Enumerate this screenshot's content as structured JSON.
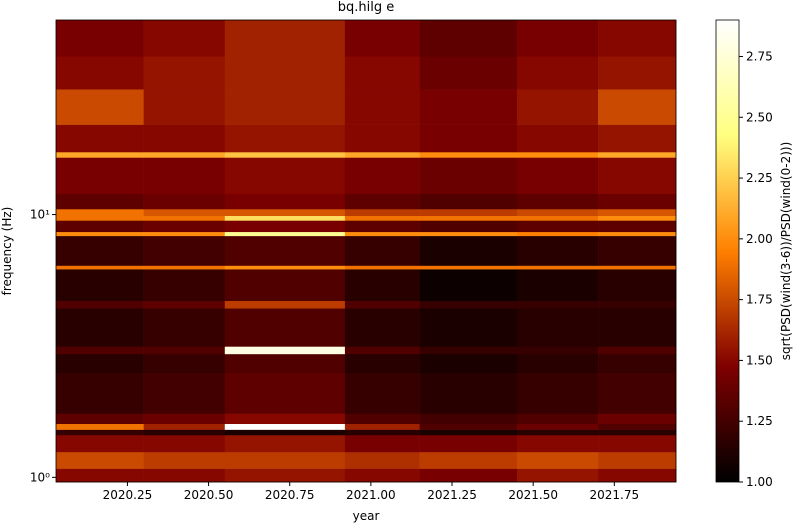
{
  "chart_data": {
    "type": "heatmap",
    "title": "bq.hilg e",
    "x_label": "year",
    "y_label": "frequency (Hz)",
    "colorbar_label": "sqrt(PSD(wind(3-6))/PSD(wind(0-2)))",
    "colormap": "afmhot",
    "y_log": true,
    "xlim": [
      2020.03,
      2021.94
    ],
    "ylim": [
      0.96,
      55
    ],
    "clim": [
      1.0,
      2.9
    ],
    "xticks": [
      {
        "value": 2020.25,
        "label": "2020.25"
      },
      {
        "value": 2020.5,
        "label": "2020.50"
      },
      {
        "value": 2020.75,
        "label": "2020.75"
      },
      {
        "value": 2021,
        "label": "2021.00"
      },
      {
        "value": 2021.25,
        "label": "2021.25"
      },
      {
        "value": 2021.5,
        "label": "2021.50"
      },
      {
        "value": 2021.75,
        "label": "2021.75"
      }
    ],
    "yticks": [
      {
        "value": 1,
        "label": "10⁰"
      },
      {
        "value": 10,
        "label": "10¹"
      }
    ],
    "cticks": [
      {
        "value": 1,
        "label": "1.00"
      },
      {
        "value": 1.25,
        "label": "1.25"
      },
      {
        "value": 1.5,
        "label": "1.50"
      },
      {
        "value": 1.75,
        "label": "1.75"
      },
      {
        "value": 2,
        "label": "2.00"
      },
      {
        "value": 2.25,
        "label": "2.25"
      },
      {
        "value": 2.5,
        "label": "2.50"
      },
      {
        "value": 2.75,
        "label": "2.75"
      }
    ],
    "x_edges": [
      2020.03,
      2020.3,
      2020.55,
      2020.92,
      2021.15,
      2021.45,
      2021.7,
      2021.94
    ],
    "y_edges": [
      0.96,
      1.08,
      1.25,
      1.45,
      1.52,
      1.6,
      1.75,
      2.5,
      2.95,
      3.15,
      4.4,
      4.7,
      6.2,
      6.4,
      8.3,
      8.6,
      9.5,
      9.9,
      10.5,
      12,
      16.5,
      17.3,
      22,
      30,
      40,
      55
    ],
    "z": [
      [
        1.5,
        1.5,
        1.55,
        1.5,
        1.45,
        1.55,
        1.5
      ],
      [
        1.75,
        1.7,
        1.7,
        1.65,
        1.7,
        1.75,
        1.7
      ],
      [
        1.5,
        1.5,
        1.55,
        1.45,
        1.45,
        1.5,
        1.5
      ],
      [
        1.2,
        1.15,
        1.1,
        1.15,
        1.1,
        1.15,
        1.15
      ],
      [
        1.9,
        1.6,
        2.9,
        1.6,
        1.3,
        1.4,
        1.3
      ],
      [
        1.35,
        1.4,
        1.5,
        1.3,
        1.25,
        1.3,
        1.4
      ],
      [
        1.2,
        1.25,
        1.35,
        1.2,
        1.15,
        1.2,
        1.25
      ],
      [
        1.15,
        1.2,
        1.3,
        1.15,
        1.1,
        1.15,
        1.2
      ],
      [
        1.3,
        1.3,
        2.8,
        1.3,
        1.2,
        1.2,
        1.3
      ],
      [
        1.15,
        1.2,
        1.3,
        1.15,
        1.1,
        1.15,
        1.15
      ],
      [
        1.3,
        1.35,
        1.7,
        1.3,
        1.2,
        1.2,
        1.2
      ],
      [
        1.15,
        1.2,
        1.3,
        1.15,
        1.05,
        1.1,
        1.15
      ],
      [
        1.9,
        1.9,
        2.0,
        1.9,
        1.9,
        1.9,
        1.9
      ],
      [
        1.2,
        1.25,
        1.3,
        1.2,
        1.1,
        1.15,
        1.2
      ],
      [
        2.0,
        2.0,
        2.5,
        2.0,
        2.0,
        1.95,
        2.0
      ],
      [
        1.35,
        1.4,
        1.45,
        1.35,
        1.3,
        1.35,
        1.35
      ],
      [
        1.9,
        1.9,
        2.3,
        1.9,
        1.9,
        1.9,
        2.0
      ],
      [
        1.9,
        1.8,
        1.8,
        1.7,
        1.7,
        1.75,
        1.8
      ],
      [
        1.35,
        1.4,
        1.45,
        1.35,
        1.3,
        1.35,
        1.4
      ],
      [
        1.45,
        1.45,
        1.5,
        1.45,
        1.4,
        1.45,
        1.5
      ],
      [
        2.1,
        2.1,
        2.2,
        2.1,
        2.0,
        2.0,
        2.1
      ],
      [
        1.5,
        1.5,
        1.55,
        1.5,
        1.45,
        1.5,
        1.55
      ],
      [
        1.75,
        1.55,
        1.6,
        1.5,
        1.45,
        1.55,
        1.75
      ],
      [
        1.5,
        1.55,
        1.6,
        1.5,
        1.4,
        1.5,
        1.55
      ],
      [
        1.45,
        1.5,
        1.6,
        1.45,
        1.35,
        1.45,
        1.5
      ]
    ]
  }
}
